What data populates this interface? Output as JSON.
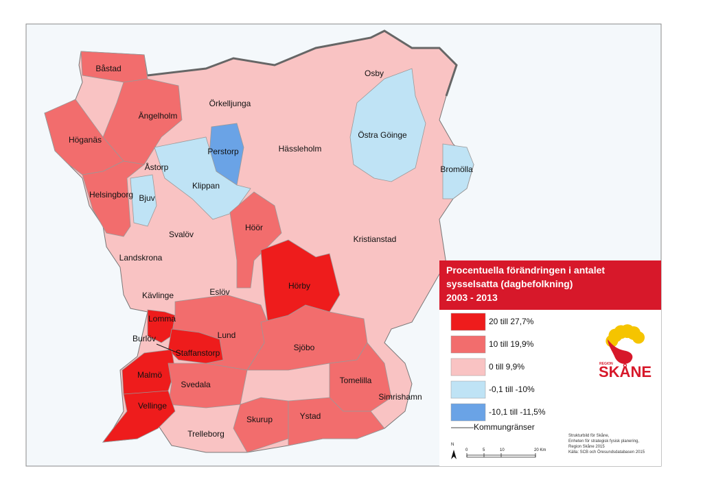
{
  "map": {
    "municipalities": [
      {
        "name": "Båstad",
        "color": "#f26d6d"
      },
      {
        "name": "Ängelholm",
        "color": "#f26d6d"
      },
      {
        "name": "Höganäs",
        "color": "#f26d6d"
      },
      {
        "name": "Örkelljunga",
        "color": "#f9c3c3"
      },
      {
        "name": "Osby",
        "color": "#f9c3c3"
      },
      {
        "name": "Östra Göinge",
        "color": "#bfe3f5"
      },
      {
        "name": "Perstorp",
        "color": "#6aa3e6"
      },
      {
        "name": "Hässleholm",
        "color": "#f9c3c3"
      },
      {
        "name": "Bromölla",
        "color": "#bfe3f5"
      },
      {
        "name": "Åstorp",
        "color": "#f9c3c3"
      },
      {
        "name": "Klippan",
        "color": "#bfe3f5"
      },
      {
        "name": "Helsingborg",
        "color": "#f26d6d"
      },
      {
        "name": "Bjuv",
        "color": "#bfe3f5"
      },
      {
        "name": "Svalöv",
        "color": "#f9c3c3"
      },
      {
        "name": "Höör",
        "color": "#f26d6d"
      },
      {
        "name": "Kristianstad",
        "color": "#f9c3c3"
      },
      {
        "name": "Landskrona",
        "color": "#f9c3c3"
      },
      {
        "name": "Hörby",
        "color": "#ee1c1c"
      },
      {
        "name": "Eslöv",
        "color": "#f9c3c3"
      },
      {
        "name": "Kävlinge",
        "color": "#f9c3c3"
      },
      {
        "name": "Lomma",
        "color": "#ee1c1c"
      },
      {
        "name": "Lund",
        "color": "#f26d6d"
      },
      {
        "name": "Burlöv",
        "color": "#f9c3c3"
      },
      {
        "name": "Staffanstorp",
        "color": "#ee1c1c"
      },
      {
        "name": "Sjöbo",
        "color": "#f26d6d"
      },
      {
        "name": "Malmö",
        "color": "#ee1c1c"
      },
      {
        "name": "Svedala",
        "color": "#f26d6d"
      },
      {
        "name": "Tomelilla",
        "color": "#f26d6d"
      },
      {
        "name": "Simrishamn",
        "color": "#f9c3c3"
      },
      {
        "name": "Vellinge",
        "color": "#ee1c1c"
      },
      {
        "name": "Skurup",
        "color": "#f26d6d"
      },
      {
        "name": "Ystad",
        "color": "#f26d6d"
      },
      {
        "name": "Trelleborg",
        "color": "#f9c3c3"
      }
    ],
    "legend": {
      "title": [
        "Procentuella förändringen i antalet",
        "sysselsatta (dagbefolkning)",
        "2003 - 2013"
      ],
      "classes": [
        {
          "label": "20 till 27,7%",
          "color": "#ee1c1c"
        },
        {
          "label": "10 till 19,9%",
          "color": "#f26d6d"
        },
        {
          "label": "0 till 9,9%",
          "color": "#f9c3c3"
        },
        {
          "label": "-0,1 till -10%",
          "color": "#bfe3f5"
        },
        {
          "label": "-10,1 till -11,5%",
          "color": "#6aa3e6"
        }
      ],
      "boundary_label": "Kommungränser"
    },
    "scale_bar": {
      "north": "N",
      "labels": [
        "0",
        "5",
        "10",
        "20 Km"
      ]
    },
    "credits": [
      "Strukturbild för Skåne,",
      "Enheten för strategisk fysisk planering,",
      "Region Skåne 2015",
      "Källa: SCB och Öresundsdatabasen 2015"
    ],
    "logo": {
      "small": "REGION",
      "large": "SKÅNE"
    }
  }
}
